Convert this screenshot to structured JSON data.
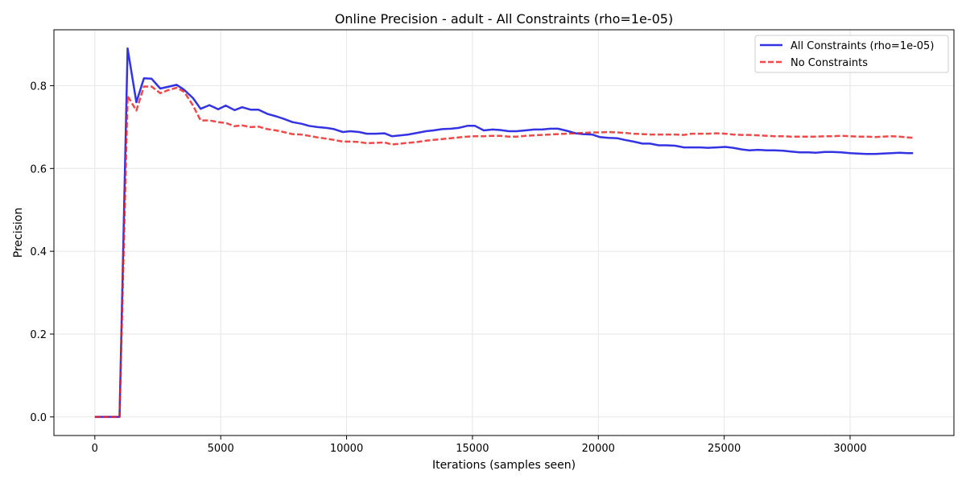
{
  "chart_data": {
    "type": "line",
    "title": "Online Precision - adult - All Constraints (rho=1e-05)",
    "xlabel": "Iterations (samples seen)",
    "ylabel": "Precision",
    "xlim": [
      -1625,
      34125
    ],
    "ylim": [
      -0.045,
      0.935
    ],
    "xticks": [
      0,
      5000,
      10000,
      15000,
      20000,
      25000,
      30000
    ],
    "yticks": [
      0.0,
      0.2,
      0.4,
      0.6,
      0.8
    ],
    "grid": true,
    "legend_position": "top-right",
    "series": [
      {
        "name": "All Constraints (rho=1e-05)",
        "color": "#0000dd",
        "style": "solid",
        "points": [
          [
            0,
            0.0
          ],
          [
            400,
            0.0
          ],
          [
            700,
            0.0
          ],
          [
            980,
            0.0
          ],
          [
            1300,
            0.89
          ],
          [
            1650,
            0.76
          ],
          [
            1950,
            0.818
          ],
          [
            2250,
            0.817
          ],
          [
            2600,
            0.793
          ],
          [
            2950,
            0.798
          ],
          [
            3250,
            0.802
          ],
          [
            3550,
            0.79
          ],
          [
            3900,
            0.77
          ],
          [
            4200,
            0.744
          ],
          [
            4550,
            0.753
          ],
          [
            4900,
            0.743
          ],
          [
            5200,
            0.752
          ],
          [
            5550,
            0.741
          ],
          [
            5850,
            0.748
          ],
          [
            6200,
            0.742
          ],
          [
            6500,
            0.742
          ],
          [
            6850,
            0.732
          ],
          [
            7200,
            0.726
          ],
          [
            7500,
            0.72
          ],
          [
            7850,
            0.712
          ],
          [
            8200,
            0.708
          ],
          [
            8500,
            0.703
          ],
          [
            8850,
            0.7
          ],
          [
            9200,
            0.698
          ],
          [
            9500,
            0.695
          ],
          [
            9850,
            0.688
          ],
          [
            10150,
            0.69
          ],
          [
            10500,
            0.688
          ],
          [
            10800,
            0.684
          ],
          [
            11150,
            0.684
          ],
          [
            11500,
            0.685
          ],
          [
            11800,
            0.678
          ],
          [
            12150,
            0.68
          ],
          [
            12450,
            0.682
          ],
          [
            12800,
            0.686
          ],
          [
            13150,
            0.69
          ],
          [
            13450,
            0.692
          ],
          [
            13800,
            0.695
          ],
          [
            14150,
            0.696
          ],
          [
            14450,
            0.698
          ],
          [
            14800,
            0.703
          ],
          [
            15100,
            0.703
          ],
          [
            15450,
            0.692
          ],
          [
            15800,
            0.694
          ],
          [
            16100,
            0.693
          ],
          [
            16450,
            0.69
          ],
          [
            16750,
            0.69
          ],
          [
            17100,
            0.692
          ],
          [
            17450,
            0.694
          ],
          [
            17750,
            0.694
          ],
          [
            18100,
            0.696
          ],
          [
            18400,
            0.696
          ],
          [
            18750,
            0.691
          ],
          [
            19100,
            0.685
          ],
          [
            19400,
            0.683
          ],
          [
            19750,
            0.682
          ],
          [
            20050,
            0.676
          ],
          [
            20400,
            0.674
          ],
          [
            20750,
            0.673
          ],
          [
            21050,
            0.669
          ],
          [
            21400,
            0.665
          ],
          [
            21750,
            0.66
          ],
          [
            22050,
            0.66
          ],
          [
            22400,
            0.656
          ],
          [
            22700,
            0.656
          ],
          [
            23050,
            0.655
          ],
          [
            23400,
            0.651
          ],
          [
            23700,
            0.651
          ],
          [
            24050,
            0.651
          ],
          [
            24350,
            0.65
          ],
          [
            24700,
            0.651
          ],
          [
            25050,
            0.652
          ],
          [
            25350,
            0.65
          ],
          [
            25700,
            0.646
          ],
          [
            26000,
            0.644
          ],
          [
            26350,
            0.645
          ],
          [
            26700,
            0.644
          ],
          [
            27000,
            0.644
          ],
          [
            27350,
            0.643
          ],
          [
            27650,
            0.641
          ],
          [
            28000,
            0.639
          ],
          [
            28350,
            0.639
          ],
          [
            28650,
            0.638
          ],
          [
            29000,
            0.64
          ],
          [
            29300,
            0.64
          ],
          [
            29650,
            0.639
          ],
          [
            30000,
            0.637
          ],
          [
            30300,
            0.636
          ],
          [
            30650,
            0.635
          ],
          [
            31000,
            0.635
          ],
          [
            31300,
            0.636
          ],
          [
            31650,
            0.637
          ],
          [
            31950,
            0.638
          ],
          [
            32300,
            0.637
          ],
          [
            32500,
            0.637
          ]
        ]
      },
      {
        "name": "No Constraints",
        "color": "#ee1c1c",
        "style": "dashed",
        "points": [
          [
            0,
            0.0
          ],
          [
            400,
            0.0
          ],
          [
            700,
            0.0
          ],
          [
            980,
            0.0
          ],
          [
            1300,
            0.775
          ],
          [
            1650,
            0.74
          ],
          [
            1950,
            0.798
          ],
          [
            2250,
            0.798
          ],
          [
            2600,
            0.782
          ],
          [
            2950,
            0.79
          ],
          [
            3250,
            0.795
          ],
          [
            3550,
            0.785
          ],
          [
            3900,
            0.752
          ],
          [
            4200,
            0.716
          ],
          [
            4550,
            0.716
          ],
          [
            4900,
            0.712
          ],
          [
            5200,
            0.71
          ],
          [
            5550,
            0.702
          ],
          [
            5850,
            0.704
          ],
          [
            6200,
            0.7
          ],
          [
            6500,
            0.701
          ],
          [
            6850,
            0.695
          ],
          [
            7200,
            0.692
          ],
          [
            7500,
            0.688
          ],
          [
            7850,
            0.683
          ],
          [
            8200,
            0.682
          ],
          [
            8500,
            0.679
          ],
          [
            8850,
            0.675
          ],
          [
            9200,
            0.672
          ],
          [
            9500,
            0.669
          ],
          [
            9850,
            0.665
          ],
          [
            10150,
            0.665
          ],
          [
            10500,
            0.664
          ],
          [
            10800,
            0.661
          ],
          [
            11150,
            0.662
          ],
          [
            11500,
            0.663
          ],
          [
            11800,
            0.658
          ],
          [
            12150,
            0.66
          ],
          [
            12450,
            0.662
          ],
          [
            12800,
            0.664
          ],
          [
            13150,
            0.667
          ],
          [
            13450,
            0.669
          ],
          [
            13800,
            0.671
          ],
          [
            14150,
            0.673
          ],
          [
            14450,
            0.675
          ],
          [
            14800,
            0.677
          ],
          [
            15100,
            0.678
          ],
          [
            15450,
            0.678
          ],
          [
            15800,
            0.679
          ],
          [
            16100,
            0.679
          ],
          [
            16450,
            0.677
          ],
          [
            16750,
            0.677
          ],
          [
            17100,
            0.679
          ],
          [
            17450,
            0.68
          ],
          [
            17750,
            0.681
          ],
          [
            18100,
            0.682
          ],
          [
            18400,
            0.683
          ],
          [
            18750,
            0.684
          ],
          [
            19100,
            0.685
          ],
          [
            19400,
            0.686
          ],
          [
            19750,
            0.687
          ],
          [
            20050,
            0.687
          ],
          [
            20400,
            0.688
          ],
          [
            20750,
            0.687
          ],
          [
            21050,
            0.686
          ],
          [
            21400,
            0.684
          ],
          [
            21750,
            0.683
          ],
          [
            22050,
            0.682
          ],
          [
            22400,
            0.682
          ],
          [
            22700,
            0.682
          ],
          [
            23050,
            0.682
          ],
          [
            23400,
            0.681
          ],
          [
            23700,
            0.684
          ],
          [
            24050,
            0.684
          ],
          [
            24350,
            0.684
          ],
          [
            24700,
            0.685
          ],
          [
            25050,
            0.684
          ],
          [
            25350,
            0.682
          ],
          [
            25700,
            0.681
          ],
          [
            26000,
            0.681
          ],
          [
            26350,
            0.68
          ],
          [
            26700,
            0.679
          ],
          [
            27000,
            0.678
          ],
          [
            27350,
            0.678
          ],
          [
            27650,
            0.677
          ],
          [
            28000,
            0.677
          ],
          [
            28350,
            0.677
          ],
          [
            28650,
            0.677
          ],
          [
            29000,
            0.678
          ],
          [
            29300,
            0.678
          ],
          [
            29650,
            0.679
          ],
          [
            30000,
            0.678
          ],
          [
            30300,
            0.677
          ],
          [
            30650,
            0.677
          ],
          [
            31000,
            0.676
          ],
          [
            31300,
            0.677
          ],
          [
            31650,
            0.678
          ],
          [
            31950,
            0.677
          ],
          [
            32300,
            0.675
          ],
          [
            32500,
            0.674
          ]
        ]
      }
    ]
  }
}
